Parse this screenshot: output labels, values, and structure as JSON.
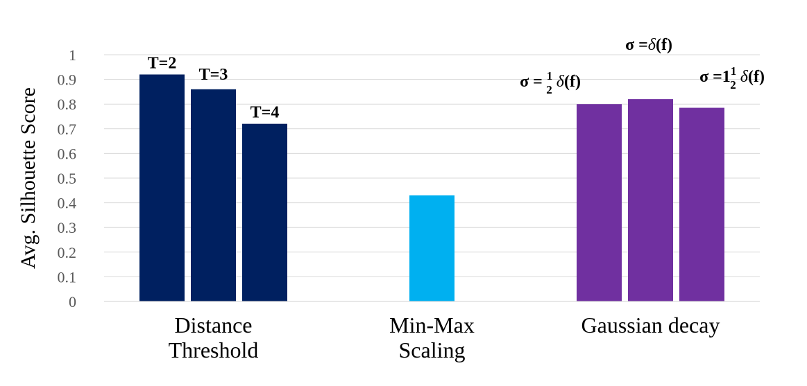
{
  "chart_data": {
    "type": "bar",
    "title": "",
    "xlabel": "",
    "ylabel": "Avg. Silhouette Score",
    "ylim": [
      0,
      1
    ],
    "yticks": [
      "0",
      "0.1",
      "0.2",
      "0.3",
      "0.4",
      "0.5",
      "0.6",
      "0.7",
      "0.8",
      "0.9",
      "1"
    ],
    "grid": true,
    "legend": "none",
    "groups": [
      {
        "category_lines": [
          "Distance",
          "Threshold"
        ],
        "color": "#002060",
        "bars": [
          {
            "label": "T=2",
            "value": 0.92
          },
          {
            "label": "T=3",
            "value": 0.86
          },
          {
            "label": "T=4",
            "value": 0.72
          }
        ]
      },
      {
        "category_lines": [
          "Min-Max",
          "Scaling"
        ],
        "color": "#00B0F0",
        "bars": [
          {
            "label": "",
            "value": 0.43
          }
        ]
      },
      {
        "category_lines": [
          "Gaussian decay"
        ],
        "color": "#7030A0",
        "bars": [
          {
            "label": "σ = 1/2 δ(f)",
            "label_parts": {
              "prefix": "σ = ",
              "num": "1",
              "den": "2",
              "func": "δ",
              "arg": "(f)"
            },
            "value": 0.8
          },
          {
            "label": "σ =δ(f)",
            "label_parts": {
              "prefix": "σ =",
              "num": "",
              "den": "",
              "func": "δ",
              "arg": "(f)"
            },
            "value": 0.82
          },
          {
            "label": "σ =1 1/2 δ(f)",
            "label_parts": {
              "prefix": "σ =1",
              "num": "1",
              "den": "2",
              "func": "δ",
              "arg": "(f)"
            },
            "value": 0.785
          }
        ]
      }
    ]
  }
}
